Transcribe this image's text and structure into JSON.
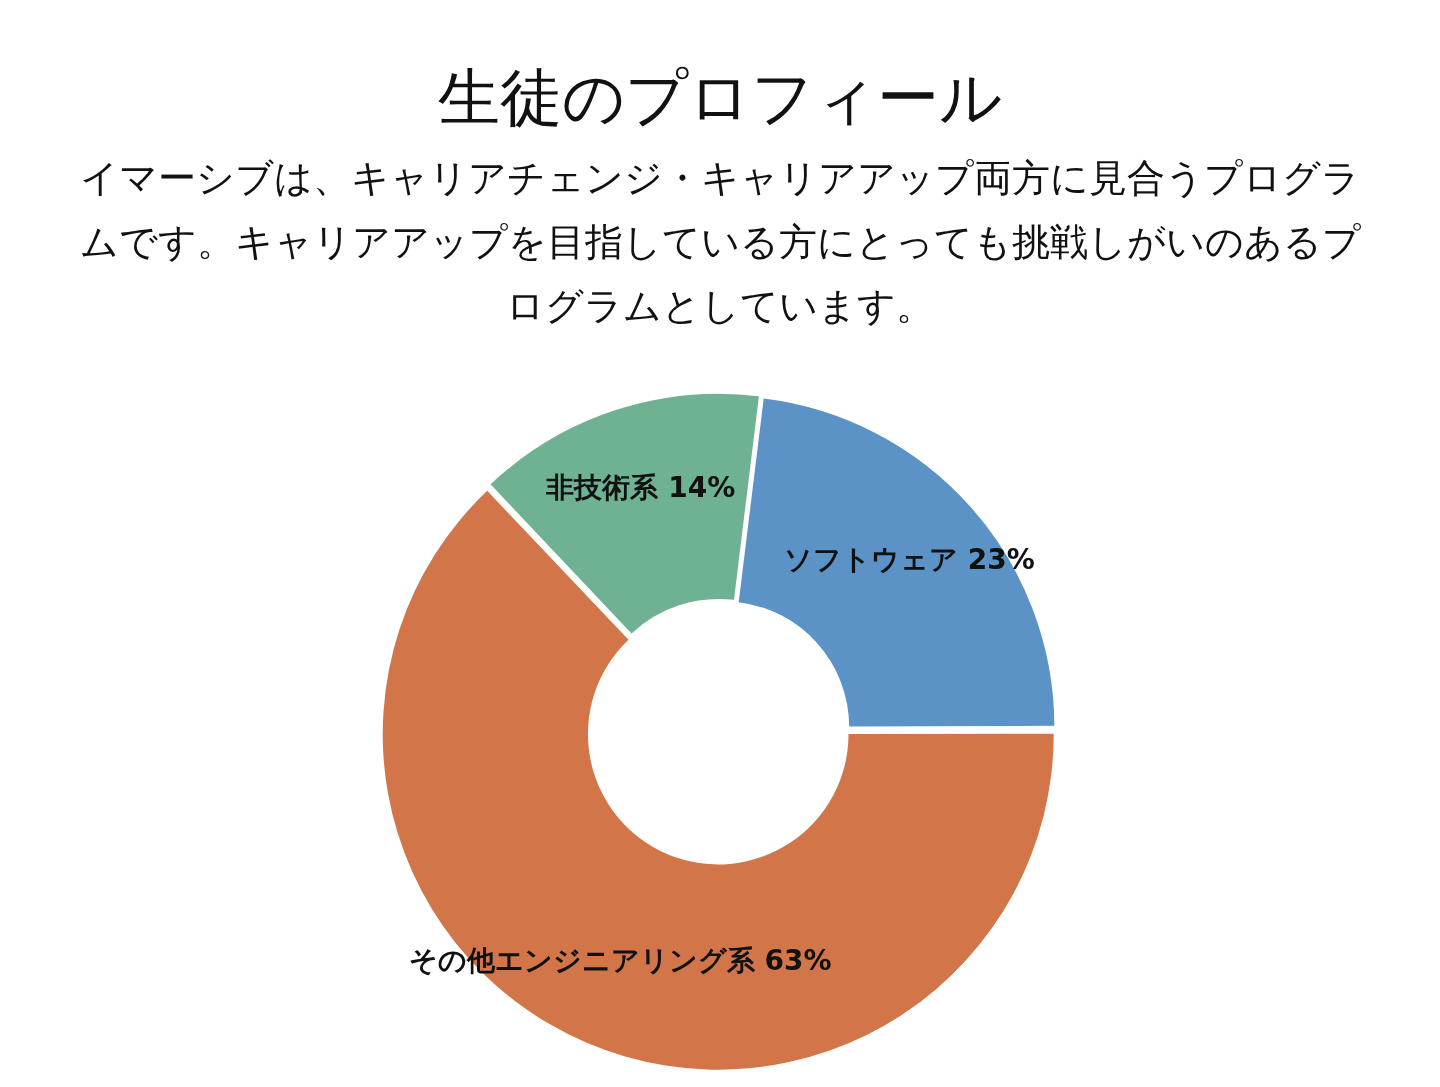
{
  "chart_data": {
    "type": "donut",
    "title": "生徒のプロフィール",
    "subtitle": "イマーシブは、キャリアチェンジ・キャリアアップ両方に見合うプログラムです。キャリアアップを目指している方にとっても挑戦しがいのあるプログラムとしています。",
    "categories": [
      "ソフトウェア",
      "その他エンジニアリング系",
      "非技術系"
    ],
    "values": [
      23,
      63,
      14
    ],
    "value_labels": [
      "23%",
      "63%",
      "14%"
    ],
    "colors": [
      "#5b93c7",
      "#d27649",
      "#6fb293"
    ],
    "legend": false
  }
}
